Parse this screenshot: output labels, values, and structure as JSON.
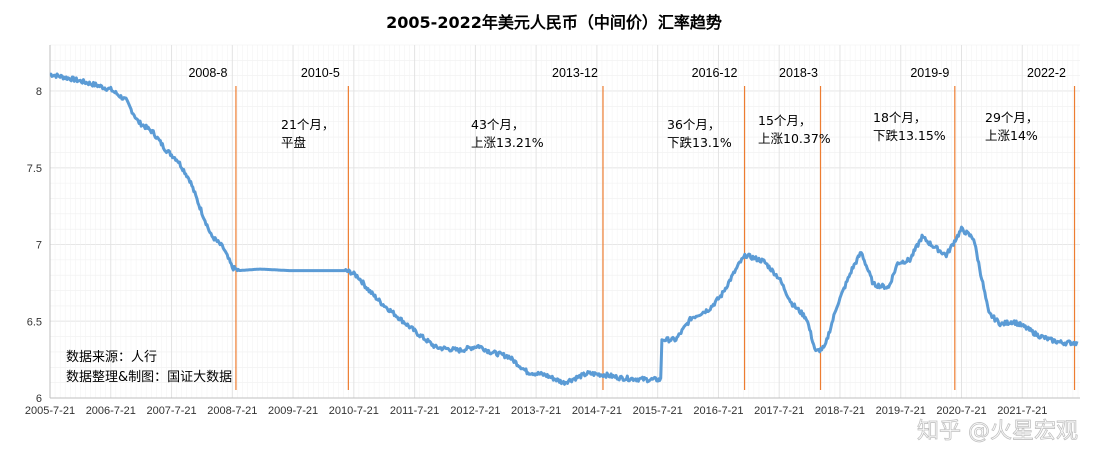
{
  "chart_data": {
    "type": "line",
    "title": "2005-2022年美元人民币（中间价）汇率趋势",
    "ylim": [
      6,
      8.3
    ],
    "y_ticks": [
      "6",
      "6.5",
      "7",
      "7.5",
      "8"
    ],
    "x_tick_labels": [
      "2005-7-21",
      "2006-7-21",
      "2007-7-21",
      "2008-7-21",
      "2009-7-21",
      "2010-7-21",
      "2011-7-21",
      "2012-7-21",
      "2013-7-21",
      "2014-7-21",
      "2015-7-21",
      "2016-7-21",
      "2017-7-21",
      "2018-7-21",
      "2019-7-21",
      "2020-7-21",
      "2021-7-21"
    ],
    "grid": true,
    "series": [
      {
        "color": "#5b9bd5",
        "points": [
          [
            2005.55,
            8.11
          ],
          [
            2005.9,
            8.08
          ],
          [
            2006.3,
            8.04
          ],
          [
            2006.55,
            8.01
          ],
          [
            2006.8,
            7.94
          ],
          [
            2007.0,
            7.8
          ],
          [
            2007.25,
            7.73
          ],
          [
            2007.45,
            7.62
          ],
          [
            2007.65,
            7.55
          ],
          [
            2007.85,
            7.42
          ],
          [
            2008.0,
            7.26
          ],
          [
            2008.2,
            7.06
          ],
          [
            2008.4,
            6.98
          ],
          [
            2008.55,
            6.85
          ],
          [
            2008.65,
            6.83
          ],
          [
            2009.0,
            6.84
          ],
          [
            2009.5,
            6.83
          ],
          [
            2010.4,
            6.83
          ],
          [
            2010.5,
            6.82
          ],
          [
            2010.62,
            6.79
          ],
          [
            2010.8,
            6.7
          ],
          [
            2011.0,
            6.62
          ],
          [
            2011.3,
            6.52
          ],
          [
            2011.6,
            6.42
          ],
          [
            2011.9,
            6.33
          ],
          [
            2012.3,
            6.31
          ],
          [
            2012.6,
            6.34
          ],
          [
            2012.8,
            6.3
          ],
          [
            2013.1,
            6.27
          ],
          [
            2013.4,
            6.17
          ],
          [
            2013.7,
            6.15
          ],
          [
            2014.0,
            6.1
          ],
          [
            2014.4,
            6.16
          ],
          [
            2014.7,
            6.15
          ],
          [
            2014.95,
            6.13
          ],
          [
            2015.4,
            6.12
          ],
          [
            2015.6,
            6.12
          ],
          [
            2015.62,
            6.38
          ],
          [
            2015.85,
            6.38
          ],
          [
            2016.1,
            6.52
          ],
          [
            2016.4,
            6.58
          ],
          [
            2016.6,
            6.67
          ],
          [
            2016.9,
            6.88
          ],
          [
            2017.0,
            6.93
          ],
          [
            2017.3,
            6.89
          ],
          [
            2017.55,
            6.78
          ],
          [
            2017.75,
            6.62
          ],
          [
            2018.0,
            6.52
          ],
          [
            2018.15,
            6.3
          ],
          [
            2018.3,
            6.33
          ],
          [
            2018.5,
            6.6
          ],
          [
            2018.75,
            6.84
          ],
          [
            2018.9,
            6.95
          ],
          [
            2019.1,
            6.74
          ],
          [
            2019.35,
            6.72
          ],
          [
            2019.5,
            6.88
          ],
          [
            2019.7,
            6.9
          ],
          [
            2019.9,
            7.05
          ],
          [
            2020.05,
            7.0
          ],
          [
            2020.3,
            6.93
          ],
          [
            2020.55,
            7.1
          ],
          [
            2020.75,
            7.04
          ],
          [
            2021.0,
            6.55
          ],
          [
            2021.2,
            6.48
          ],
          [
            2021.4,
            6.5
          ],
          [
            2021.6,
            6.46
          ],
          [
            2021.8,
            6.41
          ],
          [
            2022.0,
            6.38
          ],
          [
            2022.2,
            6.36
          ],
          [
            2022.45,
            6.36
          ]
        ]
      }
    ],
    "events": [
      {
        "label": "2008-8",
        "x": 2008.61
      },
      {
        "label": "2010-5",
        "x": 2010.46
      },
      {
        "label": "2013-12",
        "x": 2014.65
      },
      {
        "label": "2016-12",
        "x": 2016.98
      },
      {
        "label": "2018-3",
        "x": 2018.23
      },
      {
        "label": "2019-9",
        "x": 2020.44
      },
      {
        "label": "2022-2",
        "x": 2022.41
      }
    ],
    "annotations": [
      {
        "line1": "21个月，",
        "line2": "平盘"
      },
      {
        "line1": "43个月，",
        "line2": "上涨13.21%"
      },
      {
        "line1": "36个月，",
        "line2": "下跌13.1%"
      },
      {
        "line1": "15个月，",
        "line2": "上涨10.37%"
      },
      {
        "line1": "18个月，",
        "line2": "下跌13.15%"
      },
      {
        "line1": "29个月，",
        "line2": "上涨14%"
      }
    ],
    "source": {
      "line1": "数据来源：人行",
      "line2": "数据整理&制图：国证大数据"
    },
    "watermark": "知乎 @火星宏观"
  }
}
